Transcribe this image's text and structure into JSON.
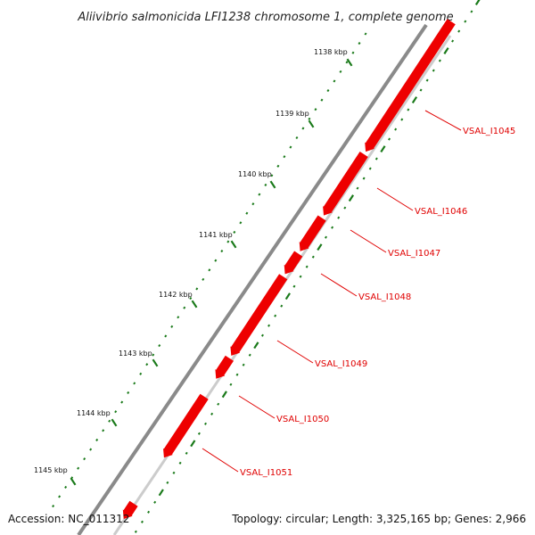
{
  "title": "Aliivibrio salmonicida LFI1238 chromosome 1, complete genome",
  "footer": {
    "accession": "Accession: NC_011312",
    "summary": "Topology: circular; Length: 3,325,165 bp; Genes: 2,966"
  },
  "colors": {
    "gene": "#ee0000",
    "backbone": "#8a8a8a",
    "tick": "#1a7a1a",
    "label": "#e00000"
  },
  "ruler": [
    {
      "label": "1138 kbp"
    },
    {
      "label": "1139 kbp"
    },
    {
      "label": "1140 kbp"
    },
    {
      "label": "1141 kbp"
    },
    {
      "label": "1142 kbp"
    },
    {
      "label": "1143 kbp"
    },
    {
      "label": "1144 kbp"
    },
    {
      "label": "1145 kbp"
    }
  ],
  "genes": [
    {
      "label": "VSAL_I1045"
    },
    {
      "label": "VSAL_I1046"
    },
    {
      "label": "VSAL_I1047"
    },
    {
      "label": "VSAL_I1048"
    },
    {
      "label": "VSAL_I1049"
    },
    {
      "label": "VSAL_I1050"
    },
    {
      "label": "VSAL_I1051"
    }
  ]
}
